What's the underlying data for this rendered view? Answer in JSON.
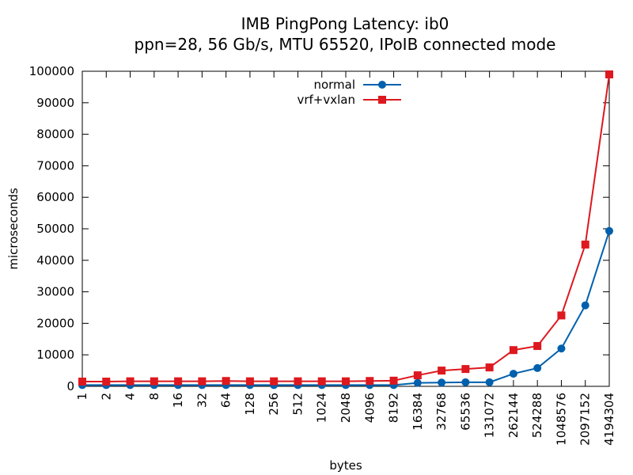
{
  "chart_data": {
    "type": "line",
    "title": "IMB PingPong Latency: ib0",
    "subtitle": "ppn=28, 56 Gb/s, MTU 65520, IPoIB connected mode",
    "xlabel": "bytes",
    "ylabel": "microseconds",
    "categories": [
      "1",
      "2",
      "4",
      "8",
      "16",
      "32",
      "64",
      "128",
      "256",
      "512",
      "1024",
      "2048",
      "4096",
      "8192",
      "16384",
      "32768",
      "65536",
      "131072",
      "262144",
      "524288",
      "1048576",
      "2097152",
      "4194304"
    ],
    "ylim": [
      0,
      100000
    ],
    "yticks": [
      "0",
      "10000",
      "20000",
      "30000",
      "40000",
      "50000",
      "60000",
      "70000",
      "80000",
      "90000",
      "100000"
    ],
    "legend_position": "top-center",
    "grid": false,
    "series": [
      {
        "name": "normal",
        "color": "#0060ad",
        "marker": "circle",
        "values": [
          400,
          400,
          400,
          400,
          400,
          400,
          400,
          400,
          400,
          400,
          400,
          400,
          400,
          400,
          1100,
          1200,
          1300,
          1300,
          4000,
          5800,
          12000,
          25700,
          49300
        ]
      },
      {
        "name": "vrf+vxlan",
        "color": "#dd181f",
        "marker": "square",
        "values": [
          1500,
          1500,
          1600,
          1600,
          1600,
          1600,
          1700,
          1600,
          1600,
          1600,
          1600,
          1600,
          1700,
          1800,
          3500,
          5000,
          5500,
          6000,
          11500,
          12800,
          22500,
          45000,
          99000
        ]
      }
    ]
  }
}
